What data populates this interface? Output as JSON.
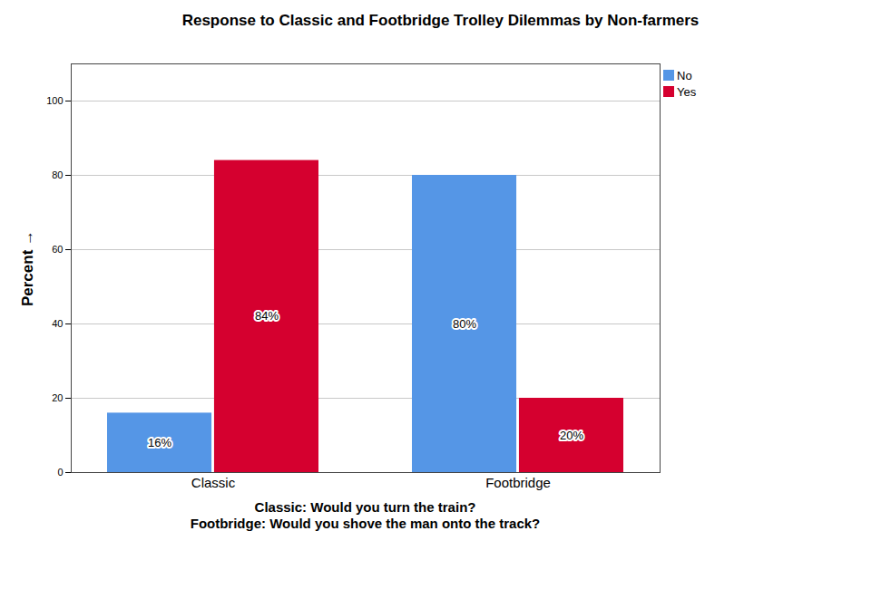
{
  "chart_data": {
    "type": "bar",
    "title": "Response to Classic and Footbridge Trolley Dilemmas by Non-farmers",
    "xlabel": "Classic: Would you turn the train?\nFootbridge: Would you shove the man onto the track?",
    "ylabel": "Percent",
    "categories": [
      "Classic",
      "Footbridge"
    ],
    "series": [
      {
        "name": "No",
        "color": "#5596e6",
        "values": [
          16,
          80
        ],
        "value_labels": [
          "16%",
          "80%"
        ]
      },
      {
        "name": "Yes",
        "color": "#d5002f",
        "values": [
          84,
          20
        ],
        "value_labels": [
          "84%",
          "20%"
        ]
      }
    ],
    "ylim": [
      0,
      110
    ],
    "yticks": [
      0,
      20,
      40,
      60,
      80,
      100
    ],
    "grid": true,
    "legend": "top-right",
    "data_labels": true
  }
}
